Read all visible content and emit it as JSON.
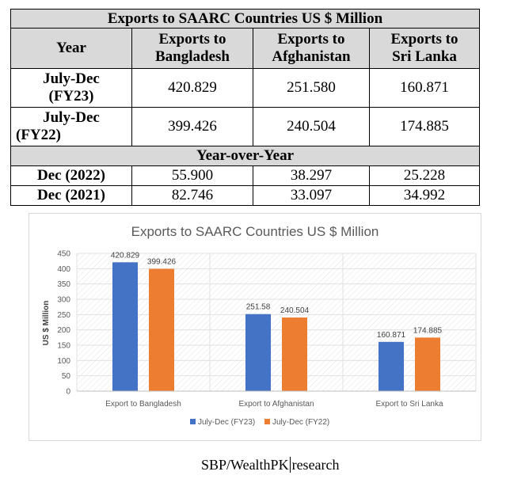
{
  "table": {
    "title": "Exports to SAARC Countries US $ Million",
    "headers": {
      "year": "Year",
      "col1": [
        "Exports to",
        "Bangladesh"
      ],
      "col2": [
        "Exports to",
        "Afghanistan"
      ],
      "col3": [
        "Exports to",
        "Sri Lanka"
      ]
    },
    "rows": [
      {
        "label": [
          "July-Dec",
          "(FY23)"
        ],
        "values": [
          "420.829",
          "251.580",
          "160.871"
        ]
      },
      {
        "label": [
          "July-Dec",
          "(FY22)"
        ],
        "values": [
          "399.426",
          "240.504",
          "174.885"
        ]
      }
    ],
    "yoy_title": "Year-over-Year",
    "yoy_rows": [
      {
        "label": "Dec (2022)",
        "values": [
          "55.900",
          "38.297",
          "25.228"
        ]
      },
      {
        "label": "Dec (2021)",
        "values": [
          "82.746",
          "33.097",
          "34.992"
        ]
      }
    ]
  },
  "chart_data": {
    "type": "bar",
    "title": "Exports to SAARC Countries US $ Million",
    "ylabel": "US $ Million",
    "xlabel": "",
    "categories": [
      "Export to Bangladesh",
      "Export to Afghanistan",
      "Export to Sri Lanka"
    ],
    "series": [
      {
        "name": "July-Dec (FY23)",
        "values": [
          420.829,
          251.58,
          160.871
        ],
        "labels": [
          "420.829",
          "251.58",
          "160.871"
        ],
        "color": "#4472c4"
      },
      {
        "name": "July-Dec (FY22)",
        "values": [
          399.426,
          240.504,
          174.885
        ],
        "labels": [
          "399.426",
          "240.504",
          "174.885"
        ],
        "color": "#ed7d31"
      }
    ],
    "ylim": [
      0,
      450
    ],
    "yticks": [
      0,
      50,
      100,
      150,
      200,
      250,
      300,
      350,
      400,
      450
    ],
    "grid": true,
    "legend": "bottom"
  },
  "source": {
    "left": "SBP/WealthPK",
    "right": "research"
  }
}
